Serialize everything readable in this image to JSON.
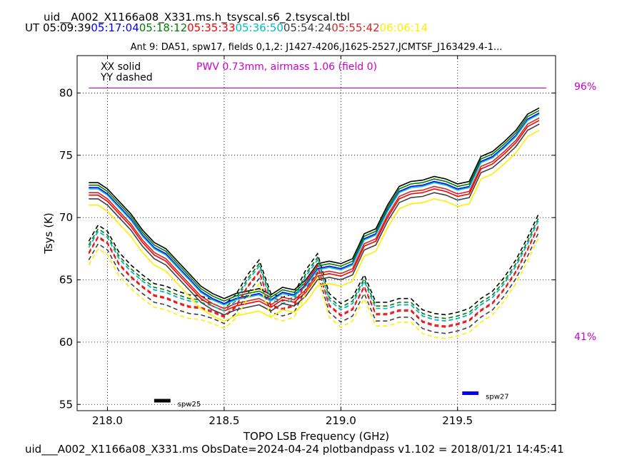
{
  "header": {
    "title": "uid__A002_X1166a08_X331.ms.h_tsyscal.s6_2.tsyscal.tbl",
    "ut_label": "UT",
    "times": [
      {
        "text": "05:09:39",
        "color": "#000000"
      },
      {
        "text": "05:17:04",
        "color": "#0000ff"
      },
      {
        "text": "05:18:12",
        "color": "#008000"
      },
      {
        "text": "05:35:33",
        "color": "#ff0000"
      },
      {
        "text": "05:36:50",
        "color": "#00bfbf"
      },
      {
        "text": "05:54:24",
        "color": "#404040"
      },
      {
        "text": "05:55:42",
        "color": "#d62728"
      },
      {
        "text": "06:06:14",
        "color": "#ffee00"
      }
    ]
  },
  "plot": {
    "subtitle": "Ant 9: DA51,  spw17,  fields 0,1,2: J1427-4206,J1625-2527,JCMTSF_J163429.4-1...",
    "legend_solid": "XX solid",
    "legend_dashed": "YY dashed",
    "pwv_text": "PWV 0.73mm, airmass 1.06 (field 0)",
    "pct_high": "96%",
    "pct_low": "41%",
    "spw_labels": [
      "spw25",
      "spw27"
    ]
  },
  "footer": "uid___A002_X1166a08_X331.ms  ObsDate=2024-04-24   plotbandpass v1.102 = 2018/01/21 14:45:41",
  "colors": {
    "pwv": "#cc00cc",
    "series": [
      "#000000",
      "#0000ff",
      "#008000",
      "#ff0000",
      "#00bfbf",
      "#404040",
      "#d62728",
      "#ffee00"
    ]
  },
  "chart_data": {
    "type": "line",
    "xlabel": "TOPO LSB Frequency (GHz)",
    "ylabel": "Tsys (K)",
    "xlim": [
      217.87,
      219.92
    ],
    "ylim": [
      54.5,
      83.0
    ],
    "xticks": [
      218.0,
      218.5,
      219.0,
      219.5
    ],
    "xtick_labels": [
      "218.0",
      "218.5",
      "219.0",
      "219.5"
    ],
    "yticks": [
      55,
      60,
      65,
      70,
      75,
      80
    ],
    "ytick_labels": [
      "55",
      "60",
      "65",
      "70",
      "75",
      "80"
    ],
    "grid": true,
    "x": [
      217.92,
      217.96,
      218.0,
      218.05,
      218.1,
      218.15,
      218.2,
      218.25,
      218.3,
      218.35,
      218.4,
      218.45,
      218.5,
      218.55,
      218.6,
      218.65,
      218.7,
      218.75,
      218.8,
      218.85,
      218.9,
      218.95,
      219.0,
      219.05,
      219.1,
      219.15,
      219.2,
      219.25,
      219.3,
      219.35,
      219.4,
      219.45,
      219.5,
      219.55,
      219.6,
      219.65,
      219.7,
      219.75,
      219.8,
      219.85
    ],
    "base_xx": [
      72.3,
      72.3,
      71.8,
      70.8,
      69.8,
      68.5,
      67.5,
      67.0,
      66.0,
      65.0,
      64.0,
      63.4,
      63.0,
      63.4,
      63.6,
      63.8,
      63.3,
      63.9,
      63.7,
      64.5,
      65.8,
      66.0,
      65.8,
      66.2,
      68.2,
      68.6,
      70.5,
      72.0,
      72.4,
      72.5,
      72.8,
      72.6,
      72.2,
      72.4,
      74.4,
      74.8,
      75.6,
      76.5,
      77.8,
      78.3
    ],
    "base_yy": [
      67.5,
      68.8,
      68.3,
      66.6,
      65.6,
      64.8,
      64.1,
      63.9,
      63.5,
      63.2,
      63.1,
      62.8,
      62.4,
      63.2,
      64.8,
      66.0,
      63.3,
      63.0,
      63.3,
      65.2,
      66.5,
      63.3,
      62.5,
      63.0,
      64.8,
      62.6,
      62.6,
      62.9,
      62.9,
      62.0,
      61.7,
      61.6,
      61.8,
      62.1,
      62.9,
      63.5,
      64.6,
      66.0,
      67.8,
      69.8
    ],
    "series": [
      {
        "name": "05:09:39",
        "color": "#000000",
        "xx_offset": 0.5,
        "yy_offset": 0.6
      },
      {
        "name": "05:17:04",
        "color": "#0000ff",
        "xx_offset": 0.1,
        "yy_offset": 0.1
      },
      {
        "name": "05:18:12",
        "color": "#008000",
        "xx_offset": 0.3,
        "yy_offset": 0.3
      },
      {
        "name": "05:35:33",
        "color": "#ff0000",
        "xx_offset": -0.5,
        "yy_offset": -0.4
      },
      {
        "name": "05:36:50",
        "color": "#00bfbf",
        "xx_offset": 0.0,
        "yy_offset": 0.1
      },
      {
        "name": "05:54:24",
        "color": "#404040",
        "xx_offset": -0.8,
        "yy_offset": -0.9
      },
      {
        "name": "05:55:42",
        "color": "#d62728",
        "xx_offset": -0.3,
        "yy_offset": -0.3
      },
      {
        "name": "06:06:14",
        "color": "#ffee00",
        "xx_offset": -1.3,
        "yy_offset": -1.3
      }
    ],
    "pwv_line": {
      "y": 80.4,
      "x_start": 217.92,
      "x_end": 219.88
    },
    "spw_markers": [
      {
        "label": "spw25",
        "x_start": 218.2,
        "x_end": 218.27,
        "y": 55.3,
        "color": "#000000"
      },
      {
        "label": "spw27",
        "x_start": 219.52,
        "x_end": 219.59,
        "y": 55.9,
        "color": "#0000ff"
      }
    ]
  }
}
